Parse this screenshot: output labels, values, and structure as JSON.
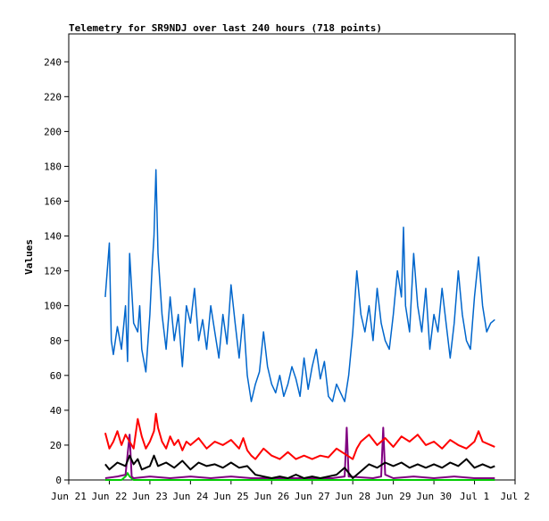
{
  "chart_data": {
    "type": "line",
    "title": "Telemetry for SR9NDJ over last 240 hours (718 points)",
    "xlabel": "",
    "ylabel": "Values",
    "grid": false,
    "legend": "none",
    "ylim": [
      0,
      256
    ],
    "yticks": [
      0,
      20,
      40,
      60,
      80,
      100,
      120,
      140,
      160,
      180,
      200,
      220,
      240
    ],
    "xlim_days": [
      21,
      32
    ],
    "xticks": [
      {
        "day": 21,
        "label": "Jun 21"
      },
      {
        "day": 22,
        "label": "Jun 22"
      },
      {
        "day": 23,
        "label": "Jun 23"
      },
      {
        "day": 24,
        "label": "Jun 24"
      },
      {
        "day": 25,
        "label": "Jun 25"
      },
      {
        "day": 26,
        "label": "Jun 26"
      },
      {
        "day": 27,
        "label": "Jun 27"
      },
      {
        "day": 28,
        "label": "Jun 28"
      },
      {
        "day": 29,
        "label": "Jun 29"
      },
      {
        "day": 30,
        "label": "Jun 30"
      },
      {
        "day": 31,
        "label": "Jul 1"
      },
      {
        "day": 32,
        "label": "Jul 2"
      }
    ],
    "series": [
      {
        "color": "#0066cc",
        "x": [
          21.9,
          22.0,
          22.05,
          22.1,
          22.2,
          22.3,
          22.4,
          22.45,
          22.5,
          22.6,
          22.7,
          22.75,
          22.8,
          22.9,
          23.0,
          23.05,
          23.1,
          23.15,
          23.2,
          23.3,
          23.4,
          23.5,
          23.6,
          23.7,
          23.8,
          23.9,
          24.0,
          24.1,
          24.2,
          24.3,
          24.4,
          24.5,
          24.6,
          24.7,
          24.8,
          24.9,
          25.0,
          25.1,
          25.2,
          25.3,
          25.4,
          25.5,
          25.6,
          25.7,
          25.8,
          25.9,
          26.0,
          26.1,
          26.2,
          26.3,
          26.4,
          26.5,
          26.6,
          26.7,
          26.8,
          26.9,
          27.0,
          27.1,
          27.2,
          27.3,
          27.4,
          27.5,
          27.6,
          27.7,
          27.8,
          27.9,
          28.0,
          28.1,
          28.2,
          28.3,
          28.4,
          28.5,
          28.6,
          28.7,
          28.8,
          28.9,
          29.0,
          29.1,
          29.2,
          29.25,
          29.3,
          29.4,
          29.5,
          29.6,
          29.7,
          29.8,
          29.9,
          30.0,
          30.1,
          30.2,
          30.3,
          30.4,
          30.5,
          30.6,
          30.7,
          30.8,
          30.9,
          31.0,
          31.1,
          31.2,
          31.3,
          31.4,
          31.5
        ],
        "y": [
          105,
          136,
          80,
          72,
          88,
          75,
          100,
          68,
          130,
          90,
          85,
          100,
          75,
          62,
          95,
          120,
          140,
          178,
          130,
          95,
          75,
          105,
          80,
          95,
          65,
          100,
          90,
          110,
          80,
          92,
          75,
          100,
          85,
          70,
          95,
          78,
          112,
          90,
          70,
          95,
          60,
          45,
          55,
          62,
          85,
          65,
          55,
          50,
          60,
          48,
          55,
          65,
          58,
          48,
          70,
          52,
          65,
          75,
          58,
          68,
          48,
          45,
          55,
          50,
          45,
          60,
          85,
          120,
          95,
          85,
          100,
          80,
          110,
          90,
          80,
          75,
          95,
          120,
          105,
          145,
          100,
          85,
          130,
          100,
          85,
          110,
          75,
          95,
          85,
          110,
          90,
          70,
          90,
          120,
          95,
          80,
          75,
          105,
          128,
          100,
          85,
          90,
          92
        ]
      },
      {
        "color": "#ff0000",
        "x": [
          21.9,
          22.0,
          22.1,
          22.2,
          22.3,
          22.4,
          22.5,
          22.6,
          22.7,
          22.8,
          22.9,
          23.0,
          23.1,
          23.15,
          23.2,
          23.3,
          23.4,
          23.5,
          23.6,
          23.7,
          23.8,
          23.9,
          24.0,
          24.2,
          24.4,
          24.6,
          24.8,
          25.0,
          25.2,
          25.3,
          25.4,
          25.5,
          25.6,
          25.8,
          26.0,
          26.2,
          26.4,
          26.6,
          26.8,
          27.0,
          27.2,
          27.4,
          27.6,
          27.8,
          28.0,
          28.1,
          28.2,
          28.4,
          28.6,
          28.8,
          29.0,
          29.2,
          29.4,
          29.6,
          29.8,
          30.0,
          30.2,
          30.4,
          30.6,
          30.8,
          31.0,
          31.1,
          31.2,
          31.4,
          31.5
        ],
        "y": [
          27,
          18,
          22,
          28,
          20,
          26,
          22,
          18,
          35,
          25,
          18,
          22,
          28,
          38,
          30,
          22,
          18,
          25,
          20,
          23,
          17,
          22,
          20,
          24,
          18,
          22,
          20,
          23,
          18,
          24,
          17,
          14,
          12,
          18,
          14,
          12,
          16,
          12,
          14,
          12,
          14,
          13,
          18,
          15,
          12,
          18,
          22,
          26,
          20,
          24,
          19,
          25,
          22,
          26,
          20,
          22,
          18,
          23,
          20,
          18,
          22,
          28,
          22,
          20,
          19
        ]
      },
      {
        "color": "#000000",
        "x": [
          21.9,
          22.0,
          22.2,
          22.4,
          22.5,
          22.6,
          22.7,
          22.8,
          23.0,
          23.1,
          23.2,
          23.4,
          23.6,
          23.8,
          24.0,
          24.2,
          24.4,
          24.6,
          24.8,
          25.0,
          25.2,
          25.4,
          25.6,
          25.8,
          26.0,
          26.2,
          26.4,
          26.6,
          26.8,
          27.0,
          27.2,
          27.4,
          27.6,
          27.8,
          28.0,
          28.2,
          28.4,
          28.6,
          28.8,
          29.0,
          29.2,
          29.4,
          29.6,
          29.8,
          30.0,
          30.2,
          30.4,
          30.6,
          30.8,
          31.0,
          31.2,
          31.4,
          31.5
        ],
        "y": [
          9,
          6,
          10,
          8,
          14,
          9,
          12,
          6,
          8,
          14,
          8,
          10,
          7,
          11,
          6,
          10,
          8,
          9,
          7,
          10,
          7,
          8,
          3,
          2,
          1,
          2,
          1,
          3,
          1,
          2,
          1,
          2,
          3,
          7,
          1,
          5,
          9,
          7,
          10,
          8,
          10,
          7,
          9,
          7,
          9,
          7,
          10,
          8,
          12,
          7,
          9,
          7,
          8
        ]
      },
      {
        "color": "#800080",
        "x": [
          21.9,
          22.2,
          22.4,
          22.5,
          22.55,
          22.6,
          23.0,
          23.5,
          24.0,
          24.5,
          25.0,
          25.5,
          26.0,
          26.5,
          27.0,
          27.5,
          27.8,
          27.85,
          27.9,
          28.5,
          28.7,
          28.75,
          28.8,
          29.0,
          29.5,
          30.0,
          30.5,
          31.0,
          31.5
        ],
        "y": [
          1,
          2,
          3,
          26,
          2,
          1,
          2,
          1,
          2,
          1,
          2,
          1,
          1,
          1,
          1,
          1,
          2,
          30,
          2,
          1,
          2,
          30,
          3,
          1,
          2,
          1,
          2,
          1,
          1
        ]
      },
      {
        "color": "#00cc00",
        "x": [
          21.9,
          22.3,
          22.4,
          22.45,
          22.5,
          22.6,
          23.0,
          23.5,
          24.0,
          25.0,
          26.0,
          27.0,
          27.8,
          28.5,
          29.0,
          30.0,
          31.0,
          31.5
        ],
        "y": [
          0,
          0,
          2,
          4,
          2,
          0,
          0,
          0,
          0,
          0,
          0,
          0,
          0,
          0,
          0,
          0,
          0,
          0
        ]
      }
    ]
  }
}
